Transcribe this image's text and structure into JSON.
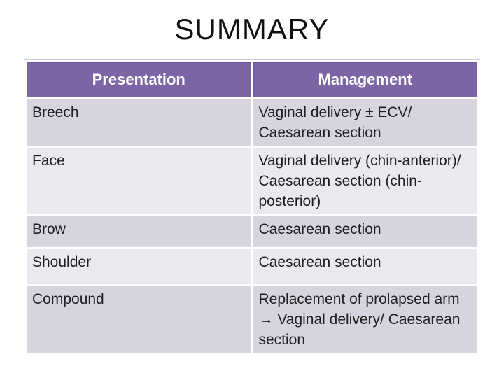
{
  "slide": {
    "title": "SUMMARY"
  },
  "table": {
    "columns": [
      "Presentation",
      "Management"
    ],
    "rows": [
      {
        "presentation": "Breech",
        "management": "Vaginal delivery ± ECV/\nCaesarean section"
      },
      {
        "presentation": "Face",
        "management": "Vaginal delivery (chin-anterior)/\nCaesarean section (chin-posterior)"
      },
      {
        "presentation": "Brow",
        "management": "Caesarean section"
      },
      {
        "presentation": "Shoulder",
        "management": "Caesarean section"
      },
      {
        "presentation": "Compound",
        "management": "Replacement of prolapsed arm\n→ Vaginal delivery/ Caesarean section"
      }
    ],
    "colors": {
      "header_bg": "#7d64a4",
      "header_border": "#6e5894",
      "header_text": "#ffffff",
      "row_dark_bg": "#d7d3df",
      "row_light_bg": "#ebe9ef",
      "body_text": "#1f1f1f",
      "top_line": "#cfc6dd",
      "page_bg": "#ffffff"
    }
  }
}
